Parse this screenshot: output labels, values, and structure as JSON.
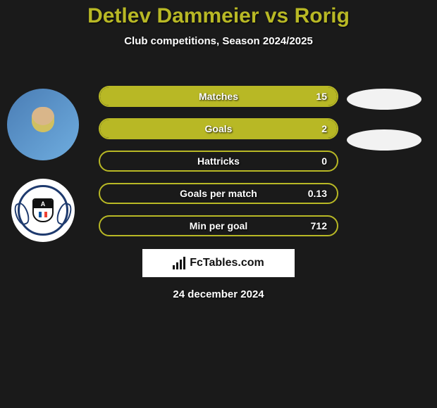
{
  "title": "Detlev Dammeier vs Rorig",
  "subtitle": "Club competitions, Season 2024/2025",
  "stats": [
    {
      "label": "Matches",
      "value": "15",
      "fill_percent": 100
    },
    {
      "label": "Goals",
      "value": "2",
      "fill_percent": 100
    },
    {
      "label": "Hattricks",
      "value": "0",
      "fill_percent": 0
    },
    {
      "label": "Goals per match",
      "value": "0.13",
      "fill_percent": 0
    },
    {
      "label": "Min per goal",
      "value": "712",
      "fill_percent": 0
    }
  ],
  "right_oval_count": 2,
  "colors": {
    "accent": "#b8b825",
    "background": "#1a1a1a",
    "text": "#ffffff",
    "brand_bg": "#ffffff",
    "brand_text": "#111111",
    "oval": "#f2f2f2"
  },
  "shield_letter": "A",
  "brand": "FcTables.com",
  "date": "24 december 2024"
}
